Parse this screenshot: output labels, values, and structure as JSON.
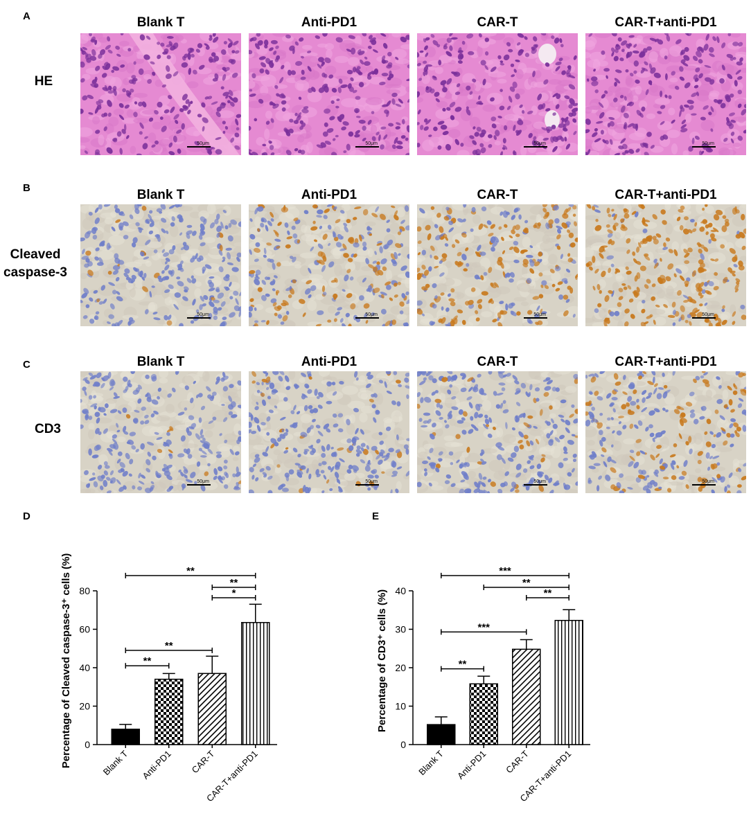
{
  "figure": {
    "panel_letters": [
      "A",
      "B",
      "C",
      "D",
      "E"
    ],
    "scale_bar_label": "50μm",
    "rows": [
      {
        "letter": "A",
        "label": "HE",
        "stain": "he",
        "columns": [
          "Blank T",
          "Anti-PD1",
          "CAR-T",
          "CAR-T+anti-PD1"
        ]
      },
      {
        "letter": "B",
        "label": "Cleaved caspase-3",
        "stain": "ihc",
        "columns": [
          "Blank T",
          "Anti-PD1",
          "CAR-T",
          "CAR-T+anti-PD1"
        ],
        "positive_level": [
          0.05,
          0.45,
          0.6,
          0.85
        ]
      },
      {
        "letter": "C",
        "label": "CD3",
        "stain": "ihc",
        "columns": [
          "Blank T",
          "Anti-PD1",
          "CAR-T",
          "CAR-T+anti-PD1"
        ],
        "positive_level": [
          0.03,
          0.1,
          0.12,
          0.4
        ]
      }
    ],
    "colors": {
      "he_bg": "#e58ad2",
      "he_nucleus": "#7a2f9a",
      "ihc_bg": "#d8d3c6",
      "ihc_nucleus": "#6f7ec9",
      "ihc_positive": "#c8791d"
    }
  },
  "chart_data": [
    {
      "letter": "D",
      "type": "bar",
      "categories": [
        "Blank T",
        "Anti-PD1",
        "CAR-T",
        "CAR-T+anti-PD1"
      ],
      "values": [
        8,
        34,
        37,
        63.5
      ],
      "errors": [
        2.5,
        3,
        9,
        9.5
      ],
      "patterns": [
        "solid",
        "checker",
        "diagonal",
        "vertical"
      ],
      "ylabel": "Percentage of Cleaved caspase-3⁺ cells (%)",
      "ylim": [
        0,
        80
      ],
      "yticks": [
        0,
        20,
        40,
        60,
        80
      ],
      "brackets": [
        {
          "from": 0,
          "to": 3,
          "label": "**"
        },
        {
          "from": 2,
          "to": 3,
          "label": "**"
        },
        {
          "from": 2,
          "to": 3,
          "label": "*"
        },
        {
          "from": 0,
          "to": 2,
          "label": "**"
        },
        {
          "from": 0,
          "to": 1,
          "label": "**"
        }
      ]
    },
    {
      "letter": "E",
      "type": "bar",
      "categories": [
        "Blank T",
        "Anti-PD1",
        "CAR-T",
        "CAR-T+anti-PD1"
      ],
      "values": [
        5.2,
        15.8,
        24.8,
        32.3
      ],
      "errors": [
        2,
        2,
        2.5,
        2.8
      ],
      "patterns": [
        "solid",
        "checker",
        "diagonal",
        "vertical"
      ],
      "ylabel": "Percentage of CD3⁺ cells (%)",
      "ylim": [
        0,
        40
      ],
      "yticks": [
        0,
        10,
        20,
        30,
        40
      ],
      "brackets": [
        {
          "from": 0,
          "to": 3,
          "label": "***"
        },
        {
          "from": 1,
          "to": 3,
          "label": "**"
        },
        {
          "from": 2,
          "to": 3,
          "label": "**"
        },
        {
          "from": 0,
          "to": 2,
          "label": "***"
        },
        {
          "from": 0,
          "to": 1,
          "label": "**"
        }
      ]
    }
  ]
}
